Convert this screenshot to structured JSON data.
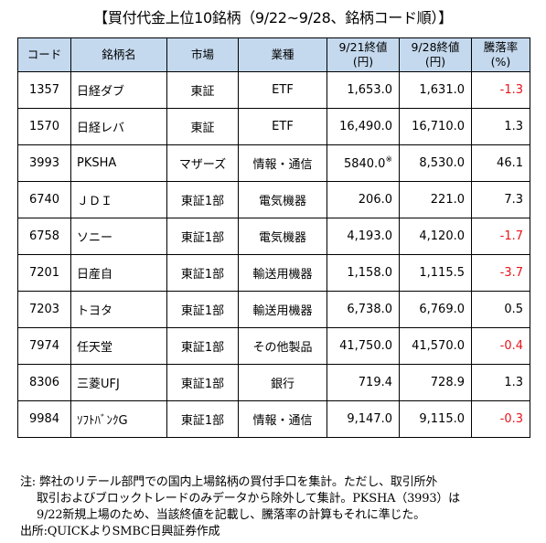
{
  "title": "【買付代金上位10銘柄（9/22~9/28、銘柄コード順）】",
  "headers": {
    "code": "コード",
    "name": "銘柄名",
    "market": "市場",
    "sector": "業種",
    "close1_line1": "9/21終値",
    "close1_line2": "(円)",
    "close2_line1": "9/28終値",
    "close2_line2": "(円)",
    "change_line1": "騰落率",
    "change_line2": "(%)"
  },
  "rows": [
    {
      "code": "1357",
      "name": "日経ダブ",
      "market": "東証",
      "sector": "ETF",
      "close1": "1,653.0",
      "close1_mark": "",
      "close2": "1,631.0",
      "change": "-1.3",
      "negative": true
    },
    {
      "code": "1570",
      "name": "日経レバ",
      "market": "東証",
      "sector": "ETF",
      "close1": "16,490.0",
      "close1_mark": "",
      "close2": "16,710.0",
      "change": "1.3",
      "negative": false
    },
    {
      "code": "3993",
      "name": "PKSHA",
      "market": "マザーズ",
      "sector": "情報・通信",
      "close1": "5840.0",
      "close1_mark": "※",
      "close2": "8,530.0",
      "change": "46.1",
      "negative": false
    },
    {
      "code": "6740",
      "name": "ＪＤＩ",
      "market": "東証1部",
      "sector": "電気機器",
      "close1": "206.0",
      "close1_mark": "",
      "close2": "221.0",
      "change": "7.3",
      "negative": false
    },
    {
      "code": "6758",
      "name": "ソニー",
      "market": "東証1部",
      "sector": "電気機器",
      "close1": "4,193.0",
      "close1_mark": "",
      "close2": "4,120.0",
      "change": "-1.7",
      "negative": true
    },
    {
      "code": "7201",
      "name": "日産自",
      "market": "東証1部",
      "sector": "輸送用機器",
      "close1": "1,158.0",
      "close1_mark": "",
      "close2": "1,115.5",
      "change": "-3.7",
      "negative": true
    },
    {
      "code": "7203",
      "name": "トヨタ",
      "market": "東証1部",
      "sector": "輸送用機器",
      "close1": "6,738.0",
      "close1_mark": "",
      "close2": "6,769.0",
      "change": "0.5",
      "negative": false
    },
    {
      "code": "7974",
      "name": "任天堂",
      "market": "東証1部",
      "sector": "その他製品",
      "close1": "41,750.0",
      "close1_mark": "",
      "close2": "41,570.0",
      "change": "-0.4",
      "negative": true
    },
    {
      "code": "8306",
      "name": "三菱UFJ",
      "market": "東証1部",
      "sector": "銀行",
      "close1": "719.4",
      "close1_mark": "",
      "close2": "728.9",
      "change": "1.3",
      "negative": false
    },
    {
      "code": "9984",
      "name": "ｿﾌﾄﾊﾞﾝｸG",
      "market": "東証1部",
      "sector": "情報・通信",
      "close1": "9,147.0",
      "close1_mark": "",
      "close2": "9,115.0",
      "change": "-0.3",
      "negative": true
    }
  ],
  "notes": {
    "line1": "注:  弊社のリテール部門での国内上場銘柄の買付手口を集計。ただし、取引所外",
    "line2": "取引およびブロックトレードのみデータから除外して集計。PKSHA（3993）は",
    "line3": "9/22新規上場のため、当該終値を記載し、騰落率の計算もそれに準じた。",
    "source": "出所:QUICKよりSMBC日興証券作成"
  },
  "colors": {
    "header_bg": "#c4d9ee",
    "negative": "#e8141c"
  }
}
